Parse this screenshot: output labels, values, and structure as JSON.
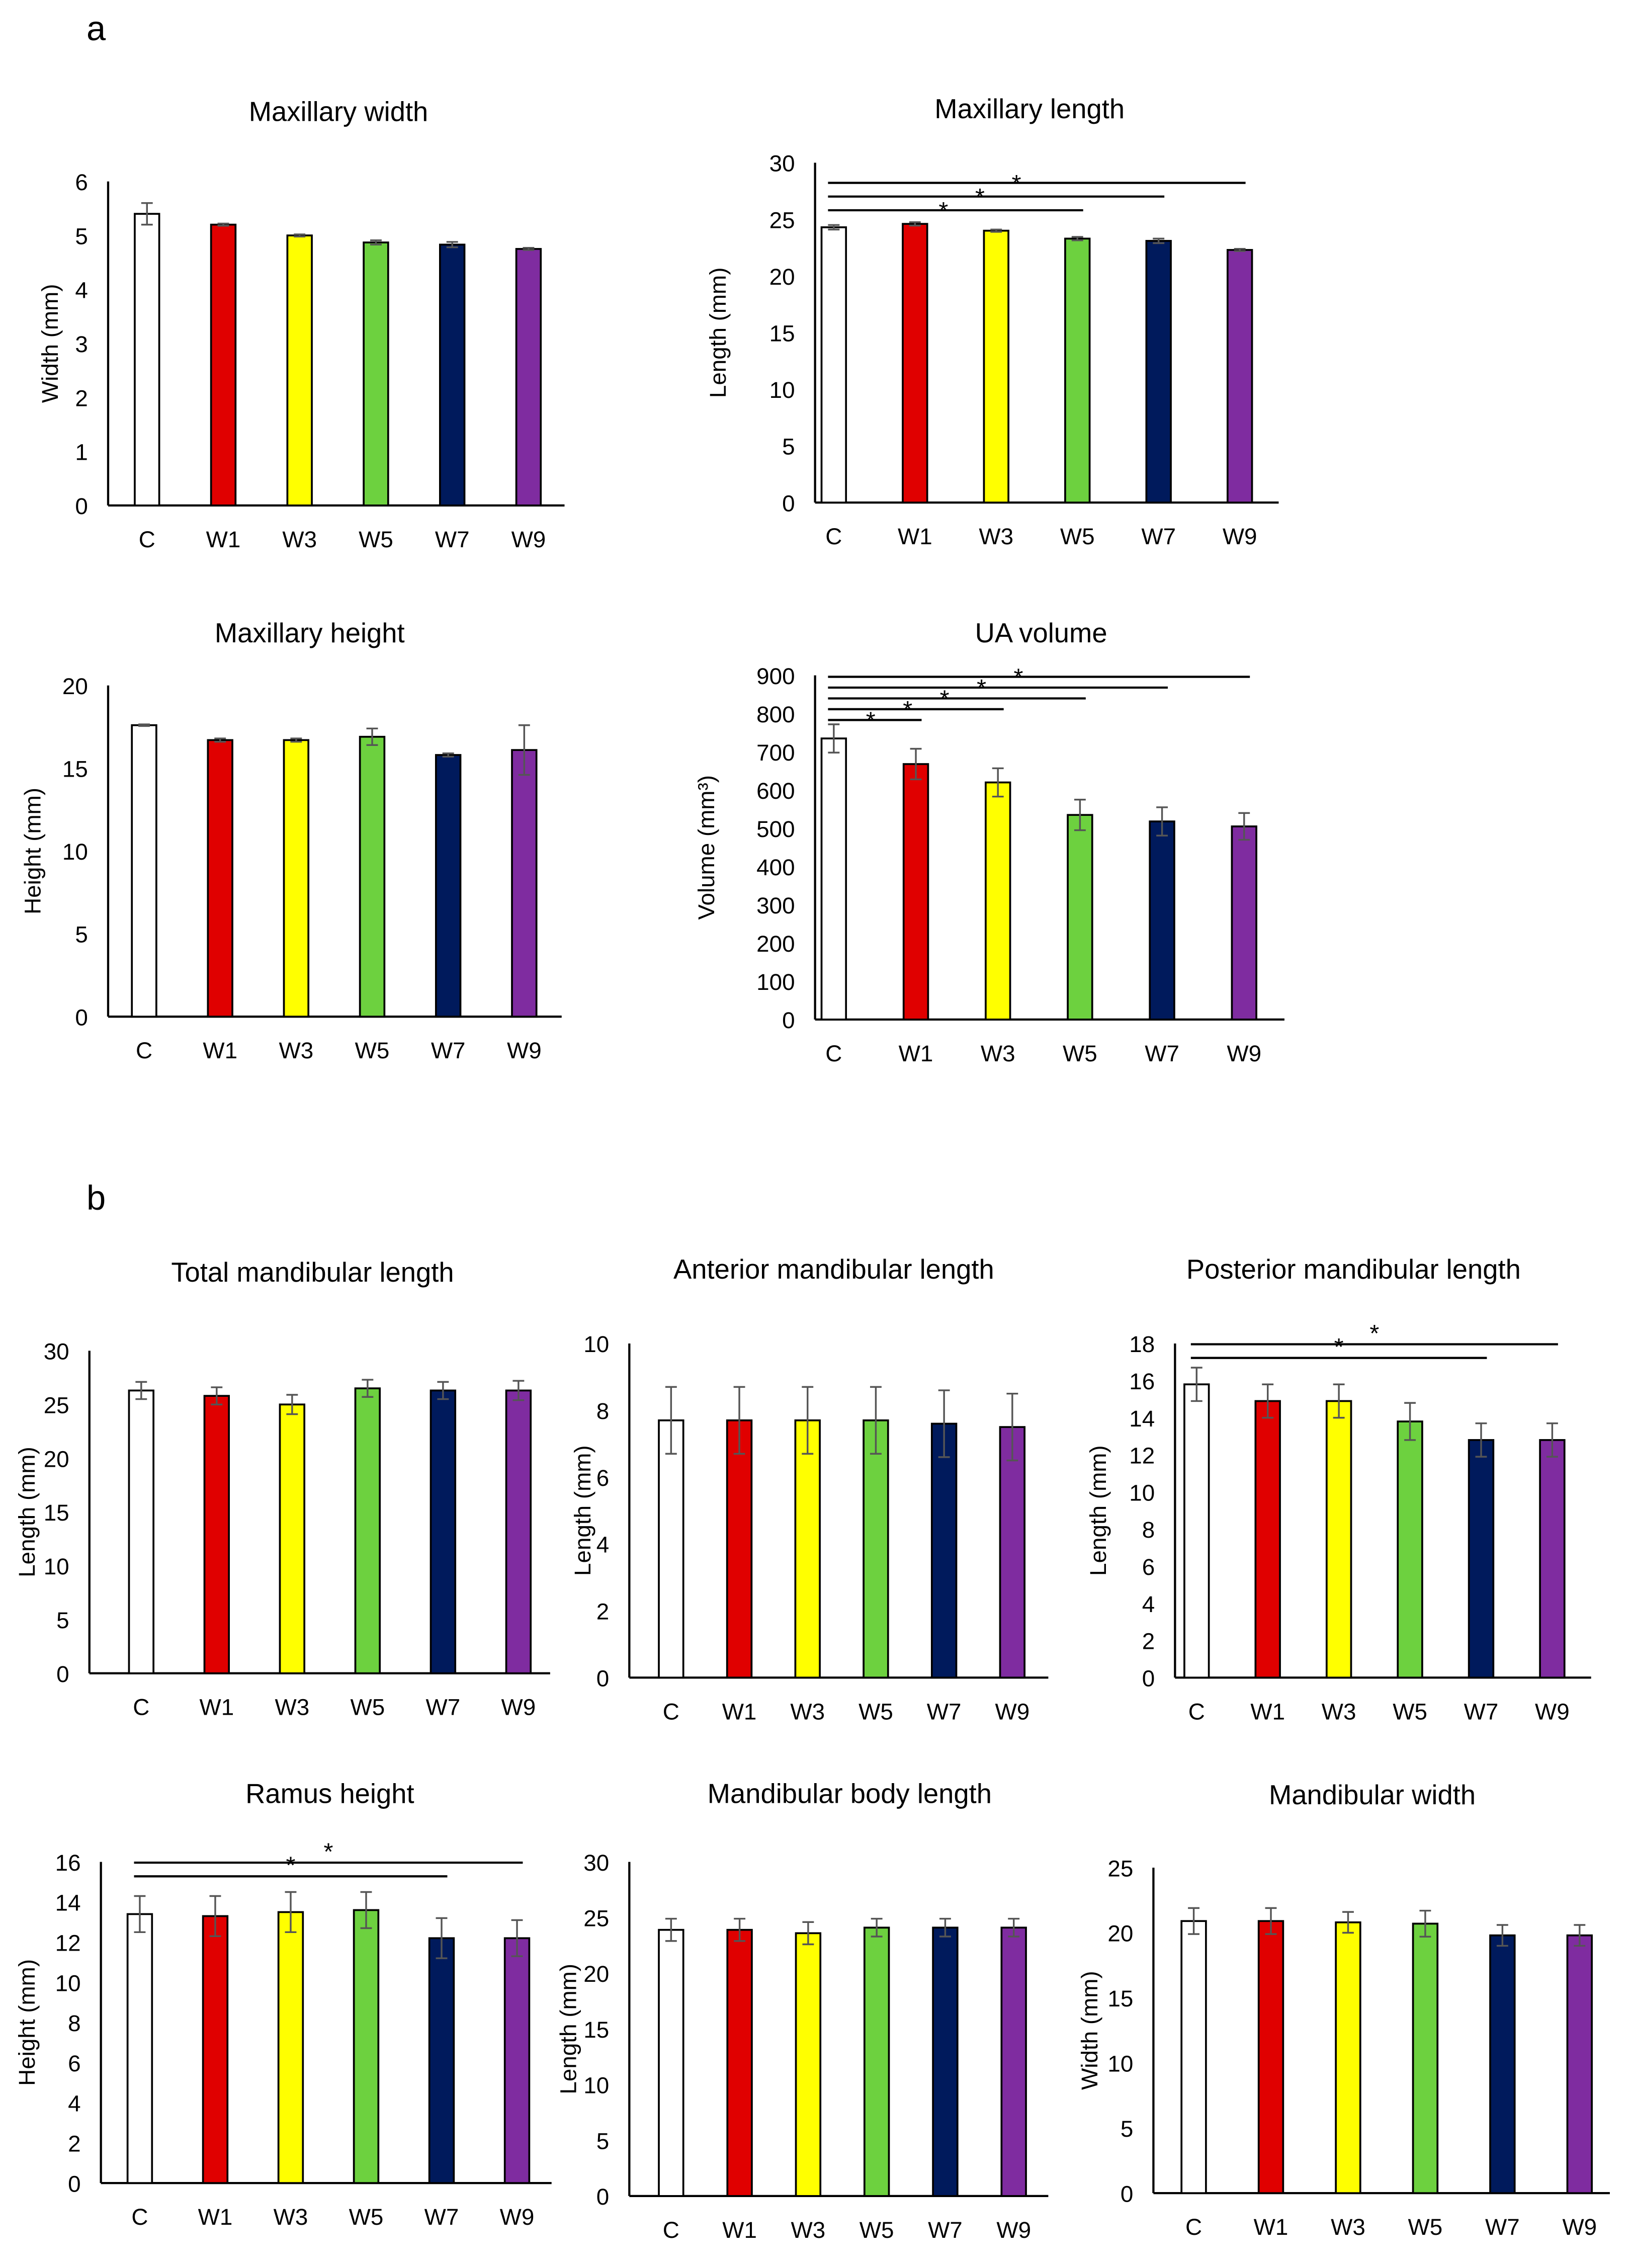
{
  "panels": [
    "a",
    "b"
  ],
  "colors": {
    "C": "#ffffff",
    "W1": "#e00000",
    "W3": "#ffff00",
    "W5": "#6dd13f",
    "W7": "#001a5c",
    "W9": "#7f2ca0",
    "error": "#555555"
  },
  "chart_data": [
    {
      "type": "bar",
      "title": "Maxillary width",
      "ylabel": "Width (mm)",
      "categories": [
        "C",
        "W1",
        "W3",
        "W5",
        "W7",
        "W9"
      ],
      "values": [
        5.4,
        5.2,
        5.0,
        4.87,
        4.83,
        4.75
      ],
      "errors": [
        0.2,
        0.02,
        0.02,
        0.04,
        0.05,
        0.02
      ],
      "ylim": [
        0,
        6
      ],
      "yticks": [
        0,
        1,
        2,
        3,
        4,
        5,
        6
      ],
      "significance": []
    },
    {
      "type": "bar",
      "title": "Maxillary length",
      "ylabel": "Length (mm)",
      "categories": [
        "C",
        "W1",
        "W3",
        "W5",
        "W7",
        "W9"
      ],
      "values": [
        24.3,
        24.6,
        24.0,
        23.3,
        23.1,
        22.3
      ],
      "errors": [
        0.2,
        0.15,
        0.1,
        0.15,
        0.2,
        0.1
      ],
      "ylim": [
        0,
        30
      ],
      "yticks": [
        0,
        5,
        10,
        15,
        20,
        25,
        30
      ],
      "significance": [
        {
          "from": "C",
          "to": "W5",
          "label": "*"
        },
        {
          "from": "C",
          "to": "W7",
          "label": "*"
        },
        {
          "from": "C",
          "to": "W9",
          "label": "*"
        }
      ]
    },
    {
      "type": "bar",
      "title": "Maxillary height",
      "ylabel": "Height (mm)",
      "categories": [
        "C",
        "W1",
        "W3",
        "W5",
        "W7",
        "W9"
      ],
      "values": [
        17.6,
        16.7,
        16.7,
        16.9,
        15.8,
        16.1
      ],
      "errors": [
        0.05,
        0.1,
        0.1,
        0.5,
        0.1,
        1.5
      ],
      "ylim": [
        0,
        20
      ],
      "yticks": [
        0,
        5,
        10,
        15,
        20
      ],
      "significance": []
    },
    {
      "type": "bar",
      "title": "UA volume",
      "ylabel": "Volume (mm³)",
      "categories": [
        "C",
        "W1",
        "W3",
        "W5",
        "W7",
        "W9"
      ],
      "values": [
        735,
        668,
        620,
        535,
        518,
        505
      ],
      "errors": [
        37,
        40,
        37,
        40,
        37,
        35
      ],
      "ylim": [
        0,
        900
      ],
      "yticks": [
        0,
        100,
        200,
        300,
        400,
        500,
        600,
        700,
        800,
        900
      ],
      "significance": [
        {
          "from": "C",
          "to": "W1",
          "label": "*"
        },
        {
          "from": "C",
          "to": "W3",
          "label": "*"
        },
        {
          "from": "C",
          "to": "W5",
          "label": "*"
        },
        {
          "from": "C",
          "to": "W7",
          "label": "*"
        },
        {
          "from": "C",
          "to": "W9",
          "label": "*"
        }
      ]
    },
    {
      "type": "bar",
      "title": "Total mandibular length",
      "ylabel": "Length (mm)",
      "categories": [
        "C",
        "W1",
        "W3",
        "W5",
        "W7",
        "W9"
      ],
      "values": [
        26.3,
        25.8,
        25.0,
        26.5,
        26.3,
        26.3
      ],
      "errors": [
        0.8,
        0.8,
        0.9,
        0.8,
        0.8,
        0.9
      ],
      "ylim": [
        0,
        30
      ],
      "yticks": [
        0,
        5,
        10,
        15,
        20,
        25,
        30
      ],
      "significance": []
    },
    {
      "type": "bar",
      "title": "Anterior mandibular length",
      "ylabel": "Length (mm)",
      "categories": [
        "C",
        "W1",
        "W3",
        "W5",
        "W7",
        "W9"
      ],
      "values": [
        7.7,
        7.7,
        7.7,
        7.7,
        7.6,
        7.5
      ],
      "errors": [
        1.0,
        1.0,
        1.0,
        1.0,
        1.0,
        1.0
      ],
      "ylim": [
        0,
        10
      ],
      "yticks": [
        0,
        2,
        4,
        6,
        8,
        10
      ],
      "significance": []
    },
    {
      "type": "bar",
      "title": "Posterior mandibular length",
      "ylabel": "Length (mm)",
      "categories": [
        "C",
        "W1",
        "W3",
        "W5",
        "W7",
        "W9"
      ],
      "values": [
        15.8,
        14.9,
        14.9,
        13.8,
        12.8,
        12.8
      ],
      "errors": [
        0.9,
        0.9,
        0.9,
        1.0,
        0.9,
        0.9
      ],
      "ylim": [
        0,
        18
      ],
      "yticks": [
        0,
        2,
        4,
        6,
        8,
        10,
        12,
        14,
        16,
        18
      ],
      "significance": [
        {
          "from": "C",
          "to": "W7",
          "label": "*"
        },
        {
          "from": "C",
          "to": "W9",
          "label": "*"
        }
      ]
    },
    {
      "type": "bar",
      "title": "Ramus height",
      "ylabel": "Height (mm)",
      "categories": [
        "C",
        "W1",
        "W3",
        "W5",
        "W7",
        "W9"
      ],
      "values": [
        13.4,
        13.3,
        13.5,
        13.6,
        12.2,
        12.2
      ],
      "errors": [
        0.9,
        1.0,
        1.0,
        0.9,
        1.0,
        0.9
      ],
      "ylim": [
        0,
        16
      ],
      "yticks": [
        0,
        2,
        4,
        6,
        8,
        10,
        12,
        14,
        16
      ],
      "significance": [
        {
          "from": "C",
          "to": "W7",
          "label": "*"
        },
        {
          "from": "C",
          "to": "W9",
          "label": "*"
        }
      ]
    },
    {
      "type": "bar",
      "title": "Mandibular body length",
      "ylabel": "Length (mm)",
      "categories": [
        "C",
        "W1",
        "W3",
        "W5",
        "W7",
        "W9"
      ],
      "values": [
        23.9,
        23.9,
        23.6,
        24.1,
        24.1,
        24.1
      ],
      "errors": [
        1.0,
        1.0,
        1.0,
        0.8,
        0.8,
        0.8
      ],
      "ylim": [
        0,
        30
      ],
      "yticks": [
        0,
        5,
        10,
        15,
        20,
        25,
        30
      ],
      "significance": []
    },
    {
      "type": "bar",
      "title": "Mandibular width",
      "ylabel": "Width (mm)",
      "categories": [
        "C",
        "W1",
        "W3",
        "W5",
        "W7",
        "W9"
      ],
      "values": [
        20.9,
        20.9,
        20.8,
        20.7,
        19.8,
        19.8
      ],
      "errors": [
        1.0,
        1.0,
        0.8,
        1.0,
        0.8,
        0.8
      ],
      "ylim": [
        0,
        25
      ],
      "yticks": [
        0,
        5,
        10,
        15,
        20,
        25
      ],
      "significance": []
    }
  ]
}
